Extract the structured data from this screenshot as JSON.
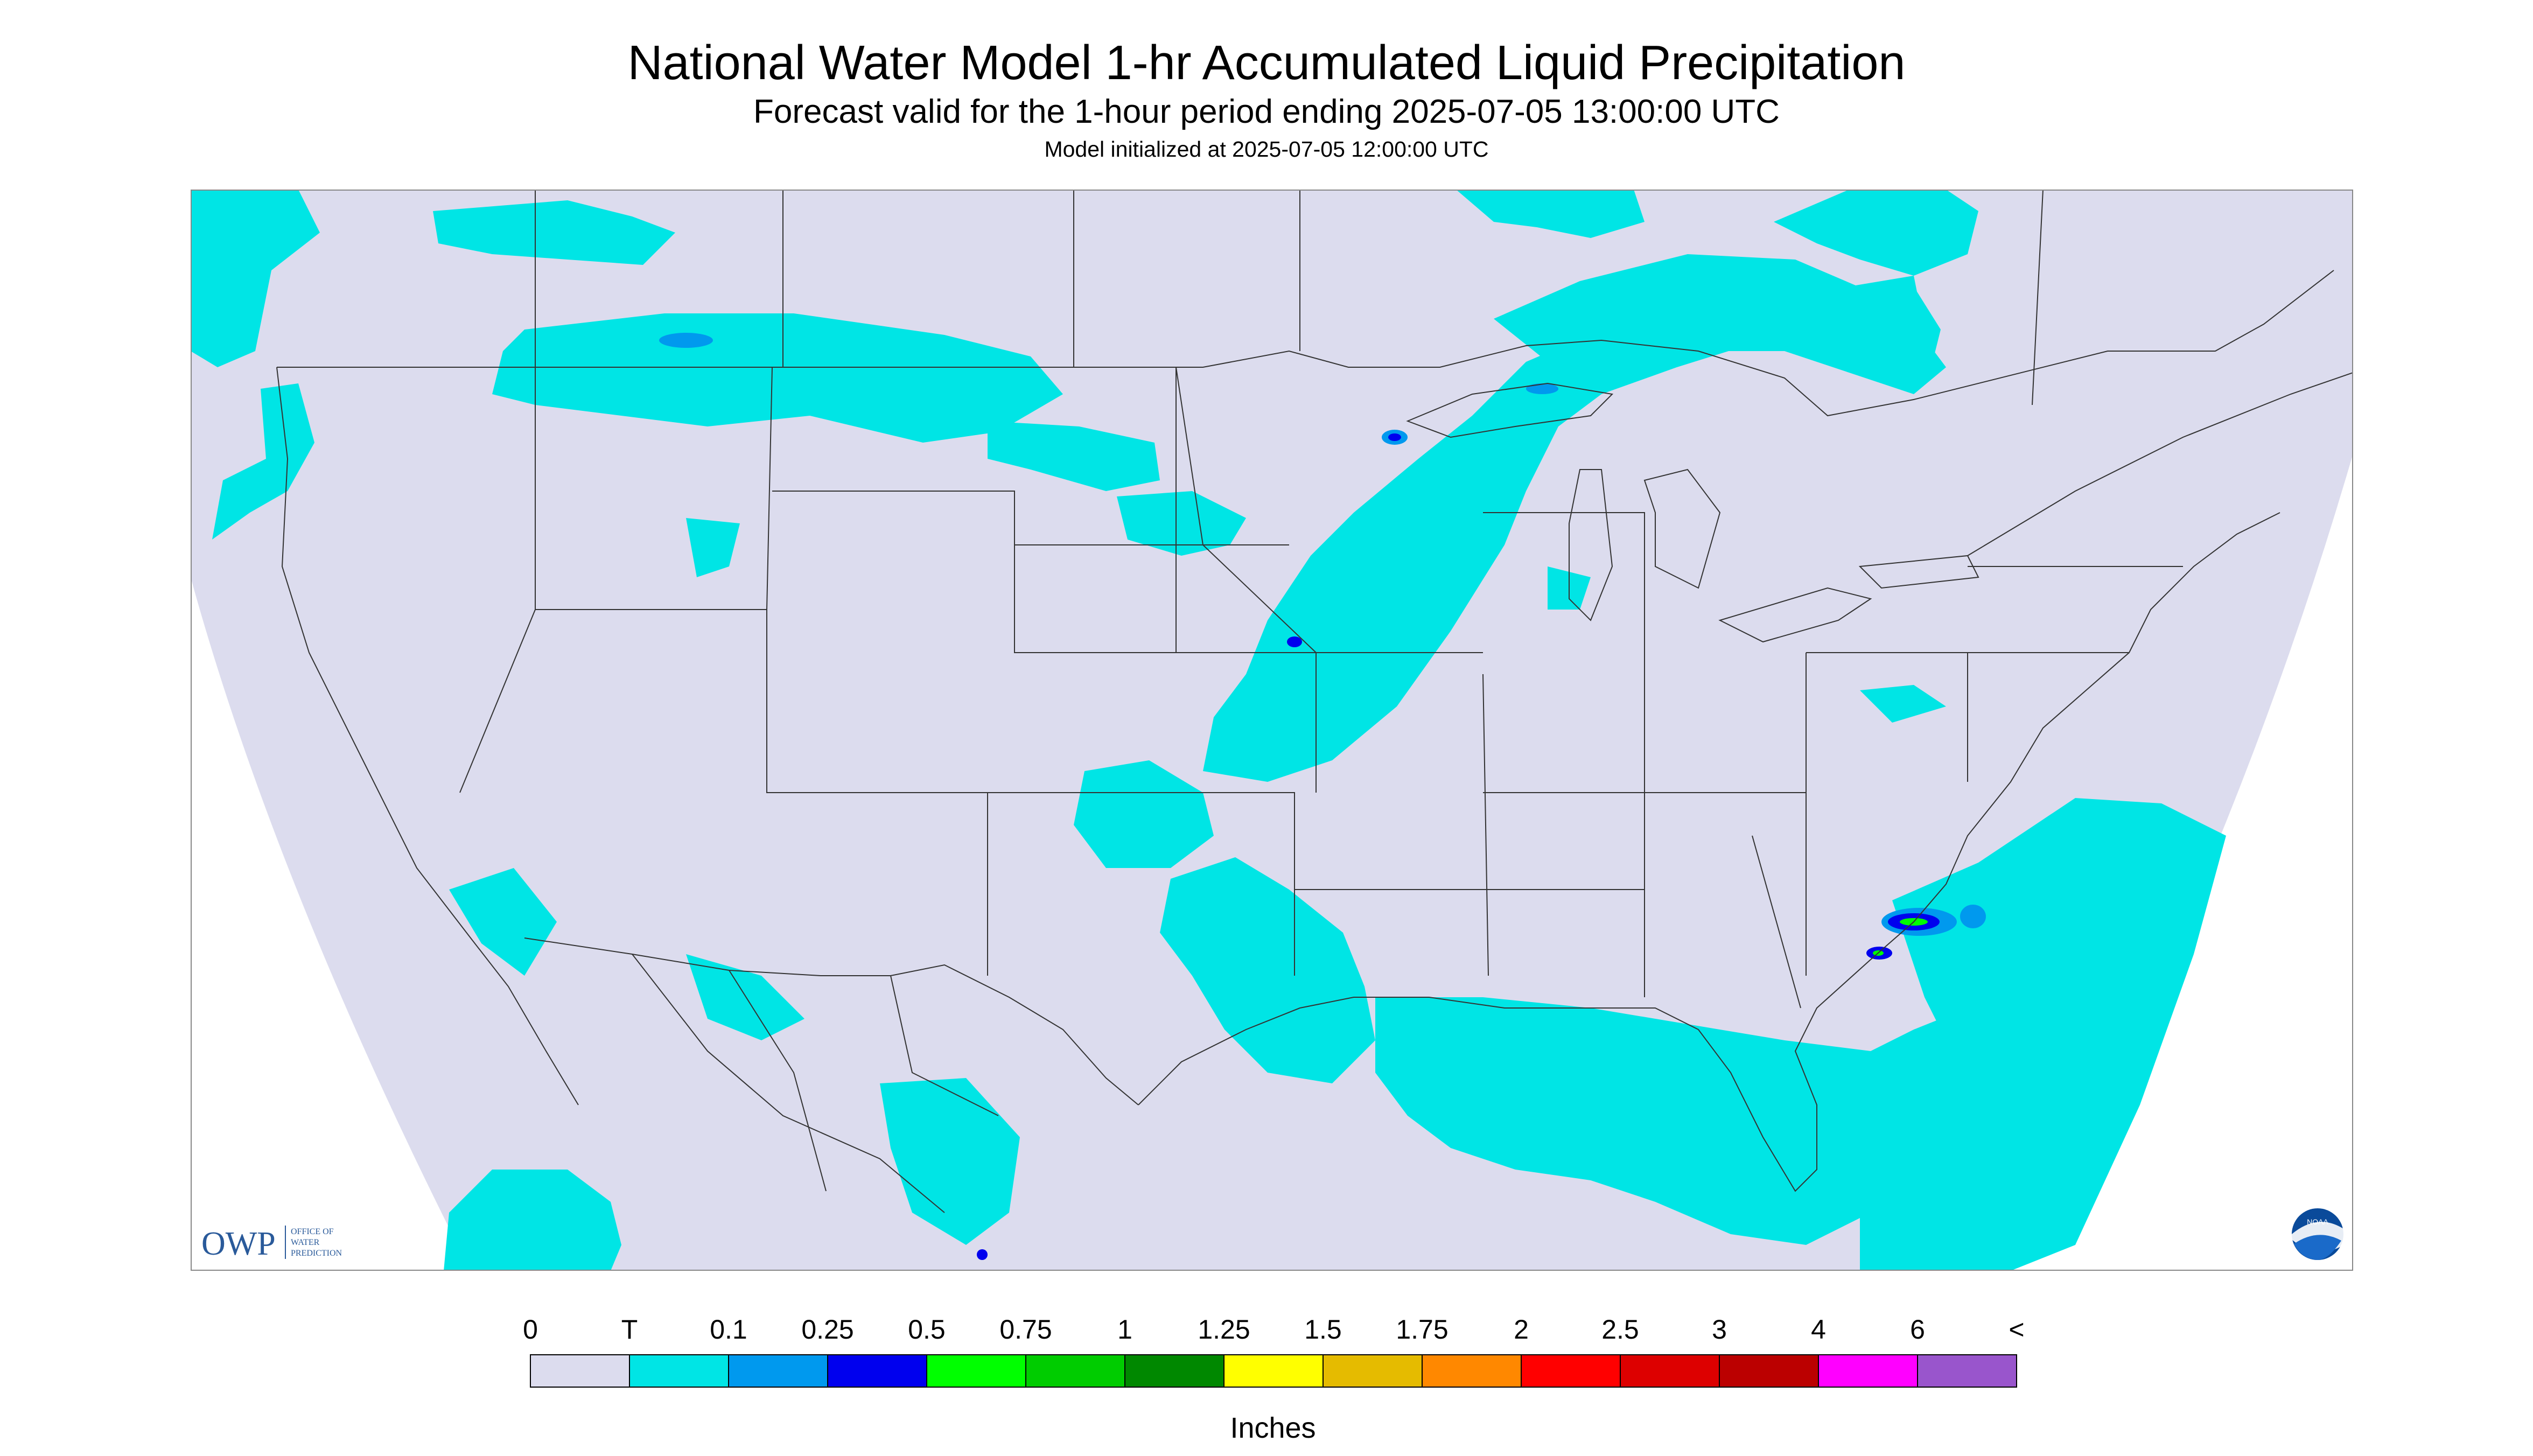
{
  "title": "National Water Model 1-hr Accumulated Liquid Precipitation",
  "subtitle": "Forecast valid for the 1-hour period ending 2025-07-05 13:00:00 UTC",
  "initialized": "Model initialized at 2025-07-05 12:00:00 UTC",
  "logo_owp": {
    "abbr": "OWP",
    "line1": "OFFICE OF",
    "line2": "WATER",
    "line3": "PREDICTION"
  },
  "logo_noaa": "NOAA",
  "colors": {
    "background_land": "#dcdcee",
    "frame": "#888888",
    "borders": "#333333",
    "precip_trace": "#00e5e5"
  },
  "legend": {
    "unit_label": "Inches",
    "labels": [
      "0",
      "T",
      "0.1",
      "0.25",
      "0.5",
      "0.75",
      "1",
      "1.25",
      "1.5",
      "1.75",
      "2",
      "2.5",
      "3",
      "4",
      "6",
      "<"
    ],
    "colors": [
      "#dcdcee",
      "#00e5e5",
      "#0099ee",
      "#0000ee",
      "#00ff00",
      "#00cc00",
      "#008800",
      "#ffff00",
      "#e5bb00",
      "#ff8800",
      "#ff0000",
      "#dd0000",
      "#bb0000",
      "#ff00ff",
      "#9955cc"
    ]
  }
}
